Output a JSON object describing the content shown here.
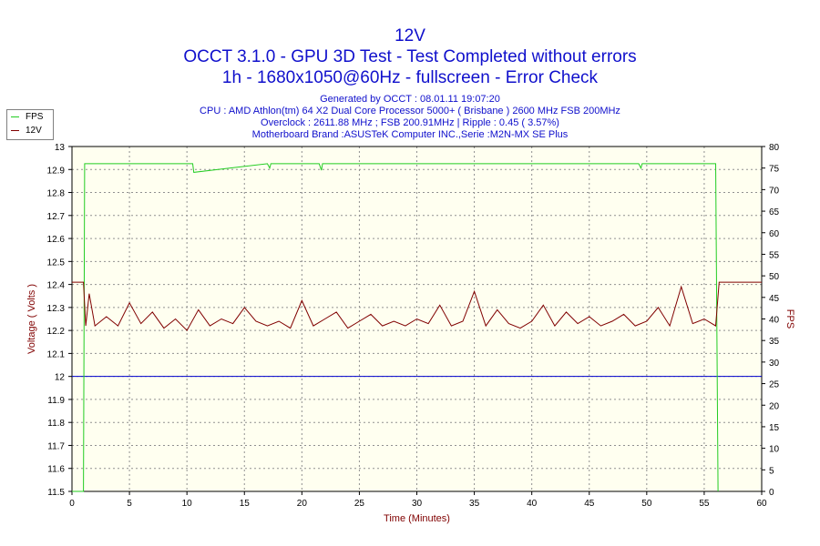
{
  "header": {
    "title_line1": "12V",
    "title_line2": "OCCT 3.1.0 - GPU 3D Test - Test Completed without errors",
    "title_line3": "1h - 1680x1050@60Hz - fullscreen - Error Check"
  },
  "info": {
    "generated": "Generated by OCCT : 08.01.11 19:07:20",
    "cpu": "CPU : AMD Athlon(tm) 64 X2 Dual Core Processor 5000+ ( Brisbane ) 2600 MHz FSB 200MHz",
    "overclock": "Overclock : 2611.88 MHz ; FSB 200.91MHz | Ripple : 0.45 ( 3.57%)",
    "motherboard": "Motherboard Brand :ASUSTeK Computer INC.,Serie :M2N-MX SE Plus"
  },
  "legend": [
    {
      "label": "FPS",
      "color": "#22cc22"
    },
    {
      "label": "12V",
      "color": "#800000"
    }
  ],
  "colors": {
    "plot_bg": "#fffff0",
    "grid": "#909090",
    "fps_line": "#22cc22",
    "volt_line": "#800000",
    "ref_line": "#0000cc",
    "axis_text": "#000000",
    "axis_label_left": "#800000",
    "axis_label_right": "#800000",
    "xlabel_color": "#800000"
  },
  "chart_data": {
    "type": "line",
    "xlabel": "Time (Minutes)",
    "ylabel": "Voltage ( Volts )",
    "y2label": "FPS",
    "xlim": [
      0,
      60
    ],
    "ylim": [
      11.5,
      13
    ],
    "y2lim": [
      0,
      80
    ],
    "x_ticks": [
      "0",
      "5",
      "10",
      "15",
      "20",
      "25",
      "30",
      "35",
      "40",
      "45",
      "50",
      "55",
      "60"
    ],
    "y_ticks": [
      "11.5",
      "11.6",
      "11.7",
      "11.8",
      "11.9",
      "12",
      "12.1",
      "12.2",
      "12.3",
      "12.4",
      "12.5",
      "12.6",
      "12.7",
      "12.8",
      "12.9",
      "13"
    ],
    "y2_ticks": [
      "0",
      "5",
      "10",
      "15",
      "20",
      "25",
      "30",
      "35",
      "40",
      "45",
      "50",
      "55",
      "60",
      "65",
      "70",
      "75",
      "80"
    ],
    "grid": true,
    "legend_position": "top-left",
    "reference_line": {
      "value": 12.0,
      "axis": "left"
    },
    "series": [
      {
        "name": "FPS",
        "axis": "right",
        "x": [
          0,
          1.0,
          1.1,
          1.2,
          10,
          10.5,
          10.6,
          17,
          17.2,
          17.3,
          21.5,
          21.7,
          21.8,
          49.3,
          49.5,
          49.6,
          55.5,
          56.0,
          56.2
        ],
        "values": [
          0,
          0,
          76,
          76,
          76,
          76,
          74,
          76,
          75,
          76,
          76,
          74.5,
          76,
          76,
          75,
          76,
          76,
          76,
          0
        ]
      },
      {
        "name": "12V",
        "axis": "left",
        "x": [
          0,
          1.0,
          1.2,
          1.5,
          2,
          3,
          4,
          5,
          6,
          7,
          8,
          9,
          10,
          11,
          12,
          13,
          14,
          15,
          16,
          17,
          18,
          19,
          20,
          21,
          22,
          23,
          24,
          25,
          26,
          27,
          28,
          29,
          30,
          31,
          32,
          33,
          34,
          35,
          36,
          37,
          38,
          39,
          40,
          41,
          42,
          43,
          44,
          45,
          46,
          47,
          48,
          49,
          50,
          51,
          52,
          53,
          54,
          55,
          56,
          56.3,
          56.5,
          60
        ],
        "values": [
          12.41,
          12.41,
          12.22,
          12.36,
          12.22,
          12.26,
          12.22,
          12.32,
          12.23,
          12.28,
          12.21,
          12.25,
          12.2,
          12.29,
          12.22,
          12.25,
          12.23,
          12.3,
          12.24,
          12.22,
          12.24,
          12.21,
          12.33,
          12.22,
          12.25,
          12.28,
          12.21,
          12.24,
          12.27,
          12.22,
          12.24,
          12.22,
          12.25,
          12.23,
          12.31,
          12.22,
          12.24,
          12.37,
          12.22,
          12.29,
          12.23,
          12.21,
          12.24,
          12.31,
          12.22,
          12.28,
          12.23,
          12.26,
          12.22,
          12.24,
          12.27,
          12.22,
          12.24,
          12.3,
          12.22,
          12.39,
          12.23,
          12.25,
          12.22,
          12.41,
          12.41,
          12.41
        ]
      }
    ]
  }
}
